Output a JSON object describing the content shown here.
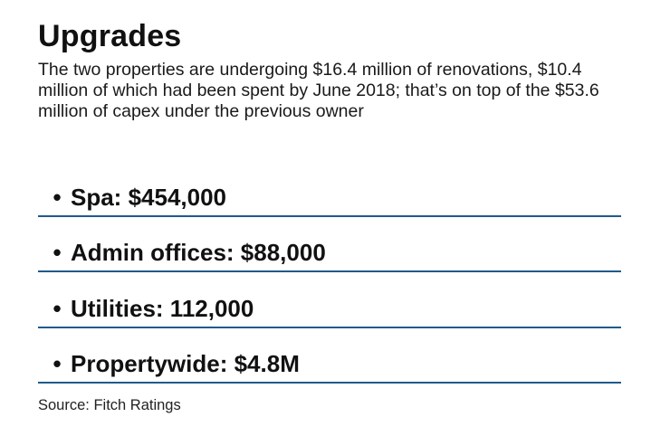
{
  "title": "Upgrades",
  "subtitle": "The two properties are undergoing $16.4 million of renovations, $10.4 million of which had been spent by June 2018; that’s on top of the $53.6 million of capex under the previous owner",
  "bullet_symbol": "•",
  "items": [
    "Spa: $454,000",
    "Admin offices: $88,000",
    "Utilities: 112,000",
    "Propertywide: $4.8M"
  ],
  "source": "Source: Fitch Ratings",
  "colors": {
    "divider": "#1f5a8c",
    "text": "#111111"
  }
}
